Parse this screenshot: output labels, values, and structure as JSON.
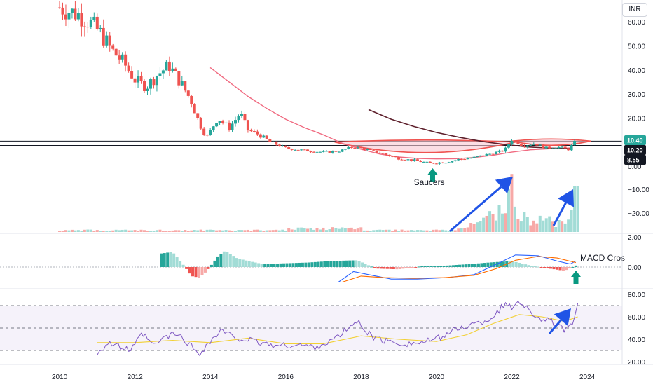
{
  "currency_button": "INR",
  "colors": {
    "up": "#26a69a",
    "down": "#ef5350",
    "up_light": "#a2dcd6",
    "down_light": "#f7a9a7",
    "ma_pink": "#f06a80",
    "ma_brown": "#5d1f2b",
    "macd_line": "#2962ff",
    "signal_line": "#ff6d00",
    "rsi_line": "#7e57c2",
    "rsi_ma": "#f2d034",
    "saucer_fill": "#f9c8d2",
    "arrow_blue": "#2054e6",
    "arrow_green": "#089981",
    "tag_black": "#131722"
  },
  "chart_data": {
    "type": "candlestick",
    "x_ticks": [
      "2010",
      "2012",
      "2014",
      "2016",
      "2018",
      "2020",
      "2022",
      "2024"
    ],
    "price_axis": {
      "ticks": [
        "60.00",
        "50.00",
        "40.00",
        "30.00",
        "20.00",
        "0.00"
      ],
      "tags": [
        {
          "label": "10.40",
          "value": 10.4
        },
        {
          "label": "10.20",
          "value": 10.2
        },
        {
          "label": "8.55",
          "value": 8.55
        }
      ]
    },
    "price_close": [
      {
        "t": 2010.0,
        "v": 66
      },
      {
        "t": 2010.5,
        "v": 63
      },
      {
        "t": 2010.8,
        "v": 60
      },
      {
        "t": 2011.1,
        "v": 55
      },
      {
        "t": 2011.4,
        "v": 48
      },
      {
        "t": 2011.7,
        "v": 43
      },
      {
        "t": 2012.0,
        "v": 36
      },
      {
        "t": 2012.3,
        "v": 33
      },
      {
        "t": 2012.6,
        "v": 38
      },
      {
        "t": 2012.9,
        "v": 42
      },
      {
        "t": 2013.2,
        "v": 35
      },
      {
        "t": 2013.5,
        "v": 27
      },
      {
        "t": 2013.7,
        "v": 18
      },
      {
        "t": 2013.9,
        "v": 12
      },
      {
        "t": 2014.2,
        "v": 20
      },
      {
        "t": 2014.5,
        "v": 16
      },
      {
        "t": 2014.8,
        "v": 22
      },
      {
        "t": 2015.0,
        "v": 15
      },
      {
        "t": 2015.3,
        "v": 13
      },
      {
        "t": 2015.6,
        "v": 10
      },
      {
        "t": 2016.0,
        "v": 7.5
      },
      {
        "t": 2016.5,
        "v": 6.5
      },
      {
        "t": 2017.0,
        "v": 5.8
      },
      {
        "t": 2017.4,
        "v": 6.2
      },
      {
        "t": 2017.8,
        "v": 8
      },
      {
        "t": 2018.1,
        "v": 7
      },
      {
        "t": 2018.5,
        "v": 5.5
      },
      {
        "t": 2019.0,
        "v": 3.2
      },
      {
        "t": 2019.5,
        "v": 2.2
      },
      {
        "t": 2019.8,
        "v": 1.2
      },
      {
        "t": 2020.2,
        "v": 1.6
      },
      {
        "t": 2020.6,
        "v": 2.8
      },
      {
        "t": 2021.0,
        "v": 3.6
      },
      {
        "t": 2021.4,
        "v": 5
      },
      {
        "t": 2021.8,
        "v": 6.5
      },
      {
        "t": 2022.0,
        "v": 11
      },
      {
        "t": 2022.3,
        "v": 8.5
      },
      {
        "t": 2022.6,
        "v": 9.5
      },
      {
        "t": 2022.9,
        "v": 7.5
      },
      {
        "t": 2023.2,
        "v": 8
      },
      {
        "t": 2023.5,
        "v": 7
      },
      {
        "t": 2023.7,
        "v": 10.4
      }
    ],
    "moving_average_1": [
      {
        "t": 2014.0,
        "v": 41
      },
      {
        "t": 2014.5,
        "v": 35
      },
      {
        "t": 2015.0,
        "v": 29
      },
      {
        "t": 2015.5,
        "v": 24
      },
      {
        "t": 2016.0,
        "v": 19.5
      },
      {
        "t": 2016.5,
        "v": 16
      },
      {
        "t": 2017.0,
        "v": 13
      },
      {
        "t": 2017.5,
        "v": 9.5
      },
      {
        "t": 2018.0,
        "v": 7
      },
      {
        "t": 2018.5,
        "v": 5
      },
      {
        "t": 2019.0,
        "v": 3.8
      },
      {
        "t": 2019.5,
        "v": 3.2
      },
      {
        "t": 2020.0,
        "v": 3
      },
      {
        "t": 2020.5,
        "v": 3.1
      },
      {
        "t": 2021.0,
        "v": 3.6
      },
      {
        "t": 2021.5,
        "v": 4.5
      },
      {
        "t": 2022.0,
        "v": 5.8
      },
      {
        "t": 2022.5,
        "v": 6.8
      },
      {
        "t": 2023.0,
        "v": 7.2
      },
      {
        "t": 2023.6,
        "v": 7.6
      }
    ],
    "moving_average_2": [
      {
        "t": 2018.2,
        "v": 23.5
      },
      {
        "t": 2018.8,
        "v": 19.5
      },
      {
        "t": 2019.4,
        "v": 16.5
      },
      {
        "t": 2020.0,
        "v": 14
      },
      {
        "t": 2020.6,
        "v": 12
      },
      {
        "t": 2021.2,
        "v": 10.3
      },
      {
        "t": 2021.8,
        "v": 9
      },
      {
        "t": 2022.4,
        "v": 8
      },
      {
        "t": 2023.0,
        "v": 7.5
      },
      {
        "t": 2023.6,
        "v": 7.3
      }
    ],
    "saucer_annotation": "Saucers",
    "volume_axis": {
      "ticks": [
        "−10.00",
        "−20.00"
      ]
    },
    "volume": [
      {
        "t": 2017.0,
        "v": 1
      },
      {
        "t": 2018.0,
        "v": 1.5
      },
      {
        "t": 2019.0,
        "v": 1
      },
      {
        "t": 2020.0,
        "v": 1
      },
      {
        "t": 2020.5,
        "v": 2
      },
      {
        "t": 2021.0,
        "v": 4
      },
      {
        "t": 2021.3,
        "v": 6
      },
      {
        "t": 2021.6,
        "v": 12
      },
      {
        "t": 2021.8,
        "v": 9
      },
      {
        "t": 2022.0,
        "v": 24
      },
      {
        "t": 2022.2,
        "v": 10
      },
      {
        "t": 2022.5,
        "v": 6
      },
      {
        "t": 2022.8,
        "v": 9
      },
      {
        "t": 2023.0,
        "v": 7
      },
      {
        "t": 2023.2,
        "v": 4
      },
      {
        "t": 2023.5,
        "v": 8
      },
      {
        "t": 2023.7,
        "v": 19
      }
    ],
    "macd_axis": {
      "ticks": [
        "2.00",
        "0.00"
      ]
    },
    "macd_annotation": "MACD Cros",
    "macd_histogram": [
      {
        "t": 2012.7,
        "v": 0.9
      },
      {
        "t": 2013.0,
        "v": 1.0
      },
      {
        "t": 2013.3,
        "v": 0.1
      },
      {
        "t": 2013.5,
        "v": -0.6
      },
      {
        "t": 2013.7,
        "v": -0.7
      },
      {
        "t": 2013.9,
        "v": -0.3
      },
      {
        "t": 2014.2,
        "v": 0.7
      },
      {
        "t": 2014.4,
        "v": 1.1
      },
      {
        "t": 2014.7,
        "v": 0.6
      },
      {
        "t": 2015.0,
        "v": 0.4
      },
      {
        "t": 2015.4,
        "v": 0.2
      },
      {
        "t": 2016.0,
        "v": 0.25
      },
      {
        "t": 2016.6,
        "v": 0.3
      },
      {
        "t": 2017.2,
        "v": 0.4
      },
      {
        "t": 2017.9,
        "v": 0.45
      },
      {
        "t": 2018.4,
        "v": -0.1
      },
      {
        "t": 2019.0,
        "v": -0.15
      },
      {
        "t": 2019.6,
        "v": 0.05
      },
      {
        "t": 2020.3,
        "v": 0.1
      },
      {
        "t": 2020.9,
        "v": 0.2
      },
      {
        "t": 2021.4,
        "v": 0.3
      },
      {
        "t": 2022.0,
        "v": 0.4
      },
      {
        "t": 2022.5,
        "v": 0.1
      },
      {
        "t": 2023.0,
        "v": -0.1
      },
      {
        "t": 2023.4,
        "v": -0.25
      },
      {
        "t": 2023.7,
        "v": 0.1
      }
    ],
    "macd_line": [
      {
        "t": 2017.4,
        "v": -1.0
      },
      {
        "t": 2017.8,
        "v": -0.3
      },
      {
        "t": 2018.2,
        "v": -0.5
      },
      {
        "t": 2018.8,
        "v": -0.8
      },
      {
        "t": 2019.5,
        "v": -0.8
      },
      {
        "t": 2020.3,
        "v": -0.7
      },
      {
        "t": 2021.0,
        "v": -0.5
      },
      {
        "t": 2021.6,
        "v": 0.2
      },
      {
        "t": 2022.1,
        "v": 0.8
      },
      {
        "t": 2022.7,
        "v": 0.75
      },
      {
        "t": 2023.2,
        "v": 0.4
      },
      {
        "t": 2023.55,
        "v": 0.2
      },
      {
        "t": 2023.7,
        "v": 0.4
      }
    ],
    "signal_line": [
      {
        "t": 2017.5,
        "v": -1.0
      },
      {
        "t": 2018.0,
        "v": -0.6
      },
      {
        "t": 2018.6,
        "v": -0.7
      },
      {
        "t": 2019.4,
        "v": -0.75
      },
      {
        "t": 2020.2,
        "v": -0.7
      },
      {
        "t": 2021.0,
        "v": -0.55
      },
      {
        "t": 2021.6,
        "v": -0.1
      },
      {
        "t": 2022.1,
        "v": 0.45
      },
      {
        "t": 2022.7,
        "v": 0.7
      },
      {
        "t": 2023.2,
        "v": 0.6
      },
      {
        "t": 2023.7,
        "v": 0.3
      }
    ],
    "rsi_axis": {
      "ticks": [
        "80.00",
        "60.00",
        "40.00",
        "20.00"
      ]
    },
    "rsi_bands": {
      "upper": 70,
      "middle": 50,
      "lower": 30
    },
    "rsi": [
      {
        "t": 2011.0,
        "v": 28
      },
      {
        "t": 2011.3,
        "v": 37
      },
      {
        "t": 2011.6,
        "v": 33
      },
      {
        "t": 2011.9,
        "v": 30
      },
      {
        "t": 2012.2,
        "v": 45
      },
      {
        "t": 2012.5,
        "v": 34
      },
      {
        "t": 2012.8,
        "v": 42
      },
      {
        "t": 2013.1,
        "v": 45
      },
      {
        "t": 2013.4,
        "v": 37
      },
      {
        "t": 2013.7,
        "v": 27
      },
      {
        "t": 2014.0,
        "v": 38
      },
      {
        "t": 2014.3,
        "v": 48
      },
      {
        "t": 2014.6,
        "v": 42
      },
      {
        "t": 2014.9,
        "v": 40
      },
      {
        "t": 2015.3,
        "v": 37
      },
      {
        "t": 2015.8,
        "v": 34
      },
      {
        "t": 2016.3,
        "v": 35
      },
      {
        "t": 2016.8,
        "v": 33
      },
      {
        "t": 2017.3,
        "v": 40
      },
      {
        "t": 2017.6,
        "v": 48
      },
      {
        "t": 2017.9,
        "v": 56
      },
      {
        "t": 2018.3,
        "v": 42
      },
      {
        "t": 2018.7,
        "v": 38
      },
      {
        "t": 2019.2,
        "v": 36
      },
      {
        "t": 2019.6,
        "v": 37
      },
      {
        "t": 2020.0,
        "v": 40
      },
      {
        "t": 2020.4,
        "v": 47
      },
      {
        "t": 2020.8,
        "v": 52
      },
      {
        "t": 2021.2,
        "v": 55
      },
      {
        "t": 2021.5,
        "v": 60
      },
      {
        "t": 2021.8,
        "v": 71
      },
      {
        "t": 2022.0,
        "v": 68
      },
      {
        "t": 2022.2,
        "v": 75
      },
      {
        "t": 2022.5,
        "v": 64
      },
      {
        "t": 2022.8,
        "v": 58
      },
      {
        "t": 2023.1,
        "v": 55
      },
      {
        "t": 2023.4,
        "v": 47
      },
      {
        "t": 2023.6,
        "v": 52
      },
      {
        "t": 2023.75,
        "v": 72
      }
    ],
    "rsi_ma": [
      {
        "t": 2011.0,
        "v": 37
      },
      {
        "t": 2012.0,
        "v": 37
      },
      {
        "t": 2013.0,
        "v": 39
      },
      {
        "t": 2014.0,
        "v": 37
      },
      {
        "t": 2015.0,
        "v": 41
      },
      {
        "t": 2016.0,
        "v": 36
      },
      {
        "t": 2017.0,
        "v": 36
      },
      {
        "t": 2018.0,
        "v": 43
      },
      {
        "t": 2019.0,
        "v": 40
      },
      {
        "t": 2020.0,
        "v": 38
      },
      {
        "t": 2020.8,
        "v": 44
      },
      {
        "t": 2021.5,
        "v": 54
      },
      {
        "t": 2022.2,
        "v": 62
      },
      {
        "t": 2022.8,
        "v": 60
      },
      {
        "t": 2023.4,
        "v": 56
      },
      {
        "t": 2023.75,
        "v": 60
      }
    ]
  }
}
